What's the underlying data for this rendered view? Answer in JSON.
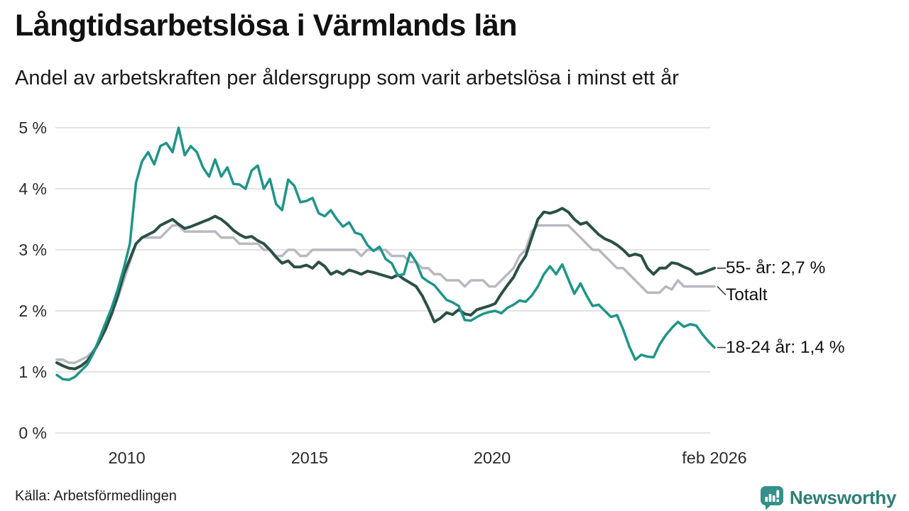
{
  "header": {
    "title": "Långtidsarbetslösa i Värmlands län",
    "subtitle": "Andel av arbetskraften per åldersgrupp som varit arbetslösa i minst ett år"
  },
  "footer": {
    "source": "Källa: Arbetsförmedlingen",
    "brand": "Newsworthy"
  },
  "colors": {
    "teal_line": "#1e9589",
    "dark_green_line": "#2a5045",
    "gray_line": "#b9b8c2",
    "gridline": "#e3e3e3",
    "connector": "#3c3c3c",
    "logo_teal": "#35908a",
    "brand_text": "#2c7f78"
  },
  "chart_data": {
    "type": "line",
    "title": "Långtidsarbetslösa i Värmlands län",
    "subtitle": "Andel av arbetskraften per åldersgrupp som varit arbetslösa i minst ett år",
    "xlabel": "",
    "ylabel": "",
    "grid": "horizontal",
    "legend_position": "right-end-labels",
    "xlim": [
      2008.083,
      2026.083
    ],
    "ylim": [
      0,
      5
    ],
    "x_start": 2008.083,
    "x_step_years": 0.16667,
    "x_ticks": [
      {
        "label": "2010",
        "year": 2010
      },
      {
        "label": "2015",
        "year": 2015
      },
      {
        "label": "2020",
        "year": 2020
      },
      {
        "label": "feb 2026",
        "year": 2026.083
      }
    ],
    "y_ticks": [
      {
        "label": "0 %",
        "value": 0
      },
      {
        "label": "1 %",
        "value": 1
      },
      {
        "label": "2 %",
        "value": 2
      },
      {
        "label": "3 %",
        "value": 3
      },
      {
        "label": "4 %",
        "value": 4
      },
      {
        "label": "5 %",
        "value": 5
      }
    ],
    "series": [
      {
        "name": "Totalt",
        "end_label": "Totalt",
        "end_value": 2.4,
        "color": "#b9b8c2",
        "stroke_width": 3.5,
        "label_dy": 12,
        "values": [
          1.2,
          1.2,
          1.15,
          1.15,
          1.2,
          1.25,
          1.35,
          1.5,
          1.7,
          1.95,
          2.2,
          2.5,
          2.8,
          3.1,
          3.2,
          3.2,
          3.2,
          3.2,
          3.3,
          3.4,
          3.4,
          3.3,
          3.3,
          3.3,
          3.3,
          3.3,
          3.3,
          3.2,
          3.2,
          3.2,
          3.1,
          3.1,
          3.1,
          3.1,
          3.0,
          3.0,
          2.9,
          2.9,
          3.0,
          3.0,
          2.9,
          2.9,
          3.0,
          3.0,
          3.0,
          3.0,
          3.0,
          3.0,
          3.0,
          3.0,
          2.9,
          3.0,
          3.0,
          3.0,
          3.0,
          2.9,
          2.9,
          2.9,
          2.8,
          2.8,
          2.7,
          2.7,
          2.6,
          2.6,
          2.5,
          2.5,
          2.5,
          2.4,
          2.5,
          2.5,
          2.5,
          2.4,
          2.4,
          2.5,
          2.6,
          2.7,
          2.9,
          3.0,
          3.3,
          3.4,
          3.4,
          3.4,
          3.4,
          3.4,
          3.4,
          3.3,
          3.2,
          3.1,
          3.0,
          3.0,
          2.9,
          2.8,
          2.7,
          2.7,
          2.6,
          2.5,
          2.4,
          2.3,
          2.3,
          2.3,
          2.4,
          2.35,
          2.5,
          2.4,
          2.4,
          2.4,
          2.4,
          2.4,
          2.4
        ]
      },
      {
        "name": "55- år",
        "end_label": "55- år: 2,7 %",
        "end_value": 2.7,
        "color": "#2a5045",
        "stroke_width": 4,
        "label_dy": 0,
        "values": [
          1.15,
          1.1,
          1.06,
          1.05,
          1.1,
          1.18,
          1.32,
          1.5,
          1.7,
          1.95,
          2.25,
          2.6,
          2.85,
          3.1,
          3.2,
          3.25,
          3.3,
          3.4,
          3.45,
          3.5,
          3.42,
          3.35,
          3.38,
          3.42,
          3.46,
          3.5,
          3.55,
          3.5,
          3.42,
          3.32,
          3.25,
          3.2,
          3.22,
          3.15,
          3.1,
          3.0,
          2.88,
          2.78,
          2.82,
          2.72,
          2.72,
          2.75,
          2.7,
          2.8,
          2.73,
          2.6,
          2.65,
          2.6,
          2.67,
          2.64,
          2.6,
          2.65,
          2.63,
          2.6,
          2.57,
          2.54,
          2.59,
          2.52,
          2.46,
          2.4,
          2.25,
          2.05,
          1.82,
          1.88,
          1.97,
          1.94,
          2.02,
          1.95,
          1.93,
          2.02,
          2.05,
          2.08,
          2.12,
          2.28,
          2.42,
          2.55,
          2.75,
          2.9,
          3.2,
          3.5,
          3.62,
          3.6,
          3.63,
          3.68,
          3.62,
          3.5,
          3.42,
          3.45,
          3.35,
          3.25,
          3.18,
          3.14,
          3.08,
          3.0,
          2.9,
          2.93,
          2.9,
          2.7,
          2.6,
          2.7,
          2.7,
          2.79,
          2.77,
          2.72,
          2.68,
          2.6,
          2.62,
          2.66,
          2.7
        ]
      },
      {
        "name": "18-24 år",
        "end_label": "18-24 år: 1,4 %",
        "end_value": 1.4,
        "color": "#1e9589",
        "stroke_width": 3.5,
        "label_dy": 0,
        "values": [
          0.95,
          0.88,
          0.87,
          0.92,
          1.02,
          1.12,
          1.3,
          1.55,
          1.8,
          2.05,
          2.35,
          2.7,
          3.1,
          4.1,
          4.45,
          4.6,
          4.4,
          4.7,
          4.75,
          4.6,
          5.0,
          4.55,
          4.7,
          4.6,
          4.35,
          4.2,
          4.48,
          4.2,
          4.35,
          4.08,
          4.07,
          4.0,
          4.3,
          4.38,
          4.0,
          4.16,
          3.75,
          3.65,
          4.15,
          4.05,
          3.78,
          3.8,
          3.85,
          3.6,
          3.55,
          3.65,
          3.5,
          3.38,
          3.45,
          3.28,
          3.25,
          3.08,
          2.98,
          3.05,
          2.85,
          2.78,
          2.58,
          2.6,
          2.95,
          2.8,
          2.55,
          2.48,
          2.42,
          2.3,
          2.18,
          2.14,
          2.08,
          1.85,
          1.84,
          1.9,
          1.95,
          1.98,
          2.0,
          1.96,
          2.05,
          2.1,
          2.17,
          2.15,
          2.25,
          2.4,
          2.6,
          2.73,
          2.6,
          2.76,
          2.52,
          2.28,
          2.45,
          2.25,
          2.08,
          2.1,
          2.0,
          1.9,
          1.93,
          1.7,
          1.42,
          1.2,
          1.28,
          1.25,
          1.24,
          1.45,
          1.6,
          1.72,
          1.82,
          1.74,
          1.78,
          1.76,
          1.62,
          1.5,
          1.4
        ]
      }
    ]
  }
}
